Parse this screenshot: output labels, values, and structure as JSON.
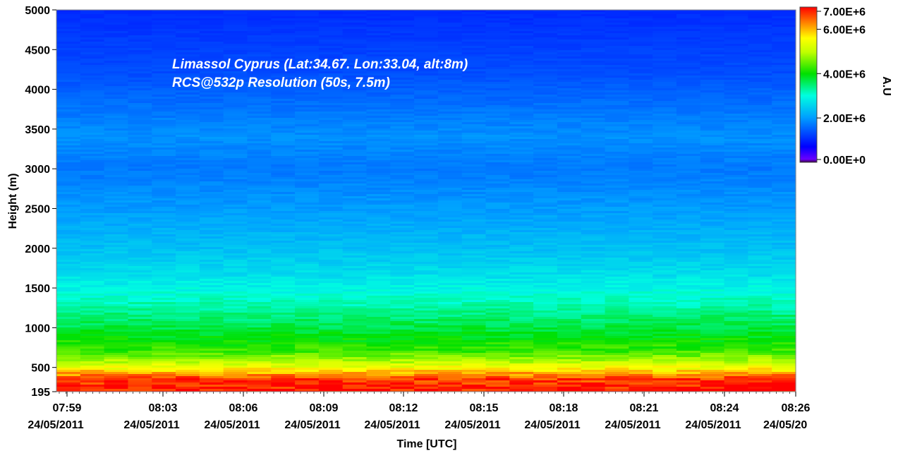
{
  "chart_data": {
    "type": "heatmap",
    "title": "",
    "annotation_lines": [
      "Limassol Cyprus (Lat:34.67. Lon:33.04, alt:8m)",
      "RCS@532p Resolution (50s, 7.5m)"
    ],
    "xlabel": "Time [UTC]",
    "ylabel": "Height (m)",
    "x_ticks": [
      {
        "time": "07:59",
        "date": "24/05/2011"
      },
      {
        "time": "08:03",
        "date": "24/05/2011"
      },
      {
        "time": "08:06",
        "date": "24/05/2011"
      },
      {
        "time": "08:09",
        "date": "24/05/2011"
      },
      {
        "time": "08:12",
        "date": "24/05/2011"
      },
      {
        "time": "08:15",
        "date": "24/05/2011"
      },
      {
        "time": "08:18",
        "date": "24/05/2011"
      },
      {
        "time": "08:21",
        "date": "24/05/2011"
      },
      {
        "time": "08:24",
        "date": "24/05/2011"
      },
      {
        "time": "08:26",
        "date": "24/05/20"
      }
    ],
    "y_ticks": [
      195,
      500,
      1000,
      1500,
      2000,
      2500,
      3000,
      3500,
      4000,
      4500,
      5000
    ],
    "ylim": [
      195,
      5000
    ],
    "colorbar": {
      "label": "A.U",
      "ticks": [
        "7.00E+6",
        "6.00E+6",
        "4.00E+6",
        "2.00E+6",
        "0.00E+0"
      ],
      "range": [
        0,
        7000000
      ]
    },
    "profile": [
      {
        "height": 195,
        "value": 7000000
      },
      {
        "height": 350,
        "value": 6700000
      },
      {
        "height": 480,
        "value": 5600000
      },
      {
        "height": 580,
        "value": 4900000
      },
      {
        "height": 700,
        "value": 4300000
      },
      {
        "height": 1000,
        "value": 3700000
      },
      {
        "height": 1300,
        "value": 3200000
      },
      {
        "height": 1650,
        "value": 2700000
      },
      {
        "height": 2000,
        "value": 2350000
      },
      {
        "height": 2500,
        "value": 2000000
      },
      {
        "height": 3000,
        "value": 1700000
      },
      {
        "height": 3400,
        "value": 1900000
      },
      {
        "height": 3700,
        "value": 1700000
      },
      {
        "height": 4200,
        "value": 1350000
      },
      {
        "height": 5000,
        "value": 1050000
      }
    ]
  }
}
